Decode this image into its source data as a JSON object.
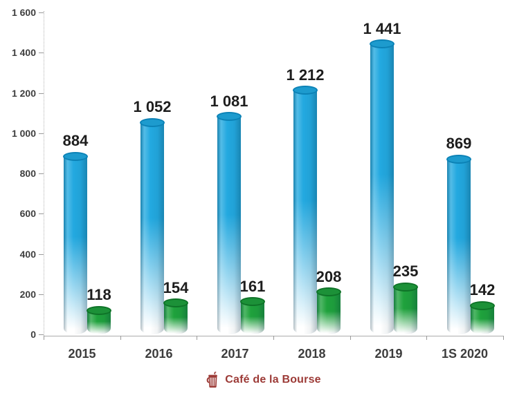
{
  "chart_data": {
    "type": "bar",
    "title": "",
    "xlabel": "",
    "ylabel": "",
    "categories": [
      "2015",
      "2016",
      "2017",
      "2018",
      "2019",
      "1S 2020"
    ],
    "series": [
      {
        "name": "blue-series",
        "values": [
          884,
          1052,
          1081,
          1212,
          1441,
          869
        ],
        "labels": [
          "884",
          "1 052",
          "1 081",
          "1 212",
          "1 441",
          "869"
        ],
        "color": "#23a9e0",
        "cap_fill": "#1d9bce",
        "cap_edge": "#0c82b6"
      },
      {
        "name": "green-series",
        "values": [
          118,
          154,
          161,
          208,
          235,
          142
        ],
        "labels": [
          "118",
          "154",
          "161",
          "208",
          "235",
          "142"
        ],
        "color": "#1fa23c",
        "cap_fill": "#1c9138",
        "cap_edge": "#0f7328"
      }
    ],
    "ylim": [
      0,
      1600
    ],
    "ytick_step": 200,
    "ytick_values": [
      0,
      200,
      400,
      600,
      800,
      1000,
      1200,
      1400,
      1600
    ],
    "ytick_labels": [
      "0",
      "200",
      "400",
      "600",
      "800",
      "1 000",
      "1 200",
      "1 400",
      "1 600"
    ],
    "grid": false,
    "legend": "none",
    "bar_style": "3d-cylinder-gradient-to-white"
  },
  "footer": {
    "logo_text": "Café de la Bourse",
    "logo_color": "#9c3a36"
  }
}
